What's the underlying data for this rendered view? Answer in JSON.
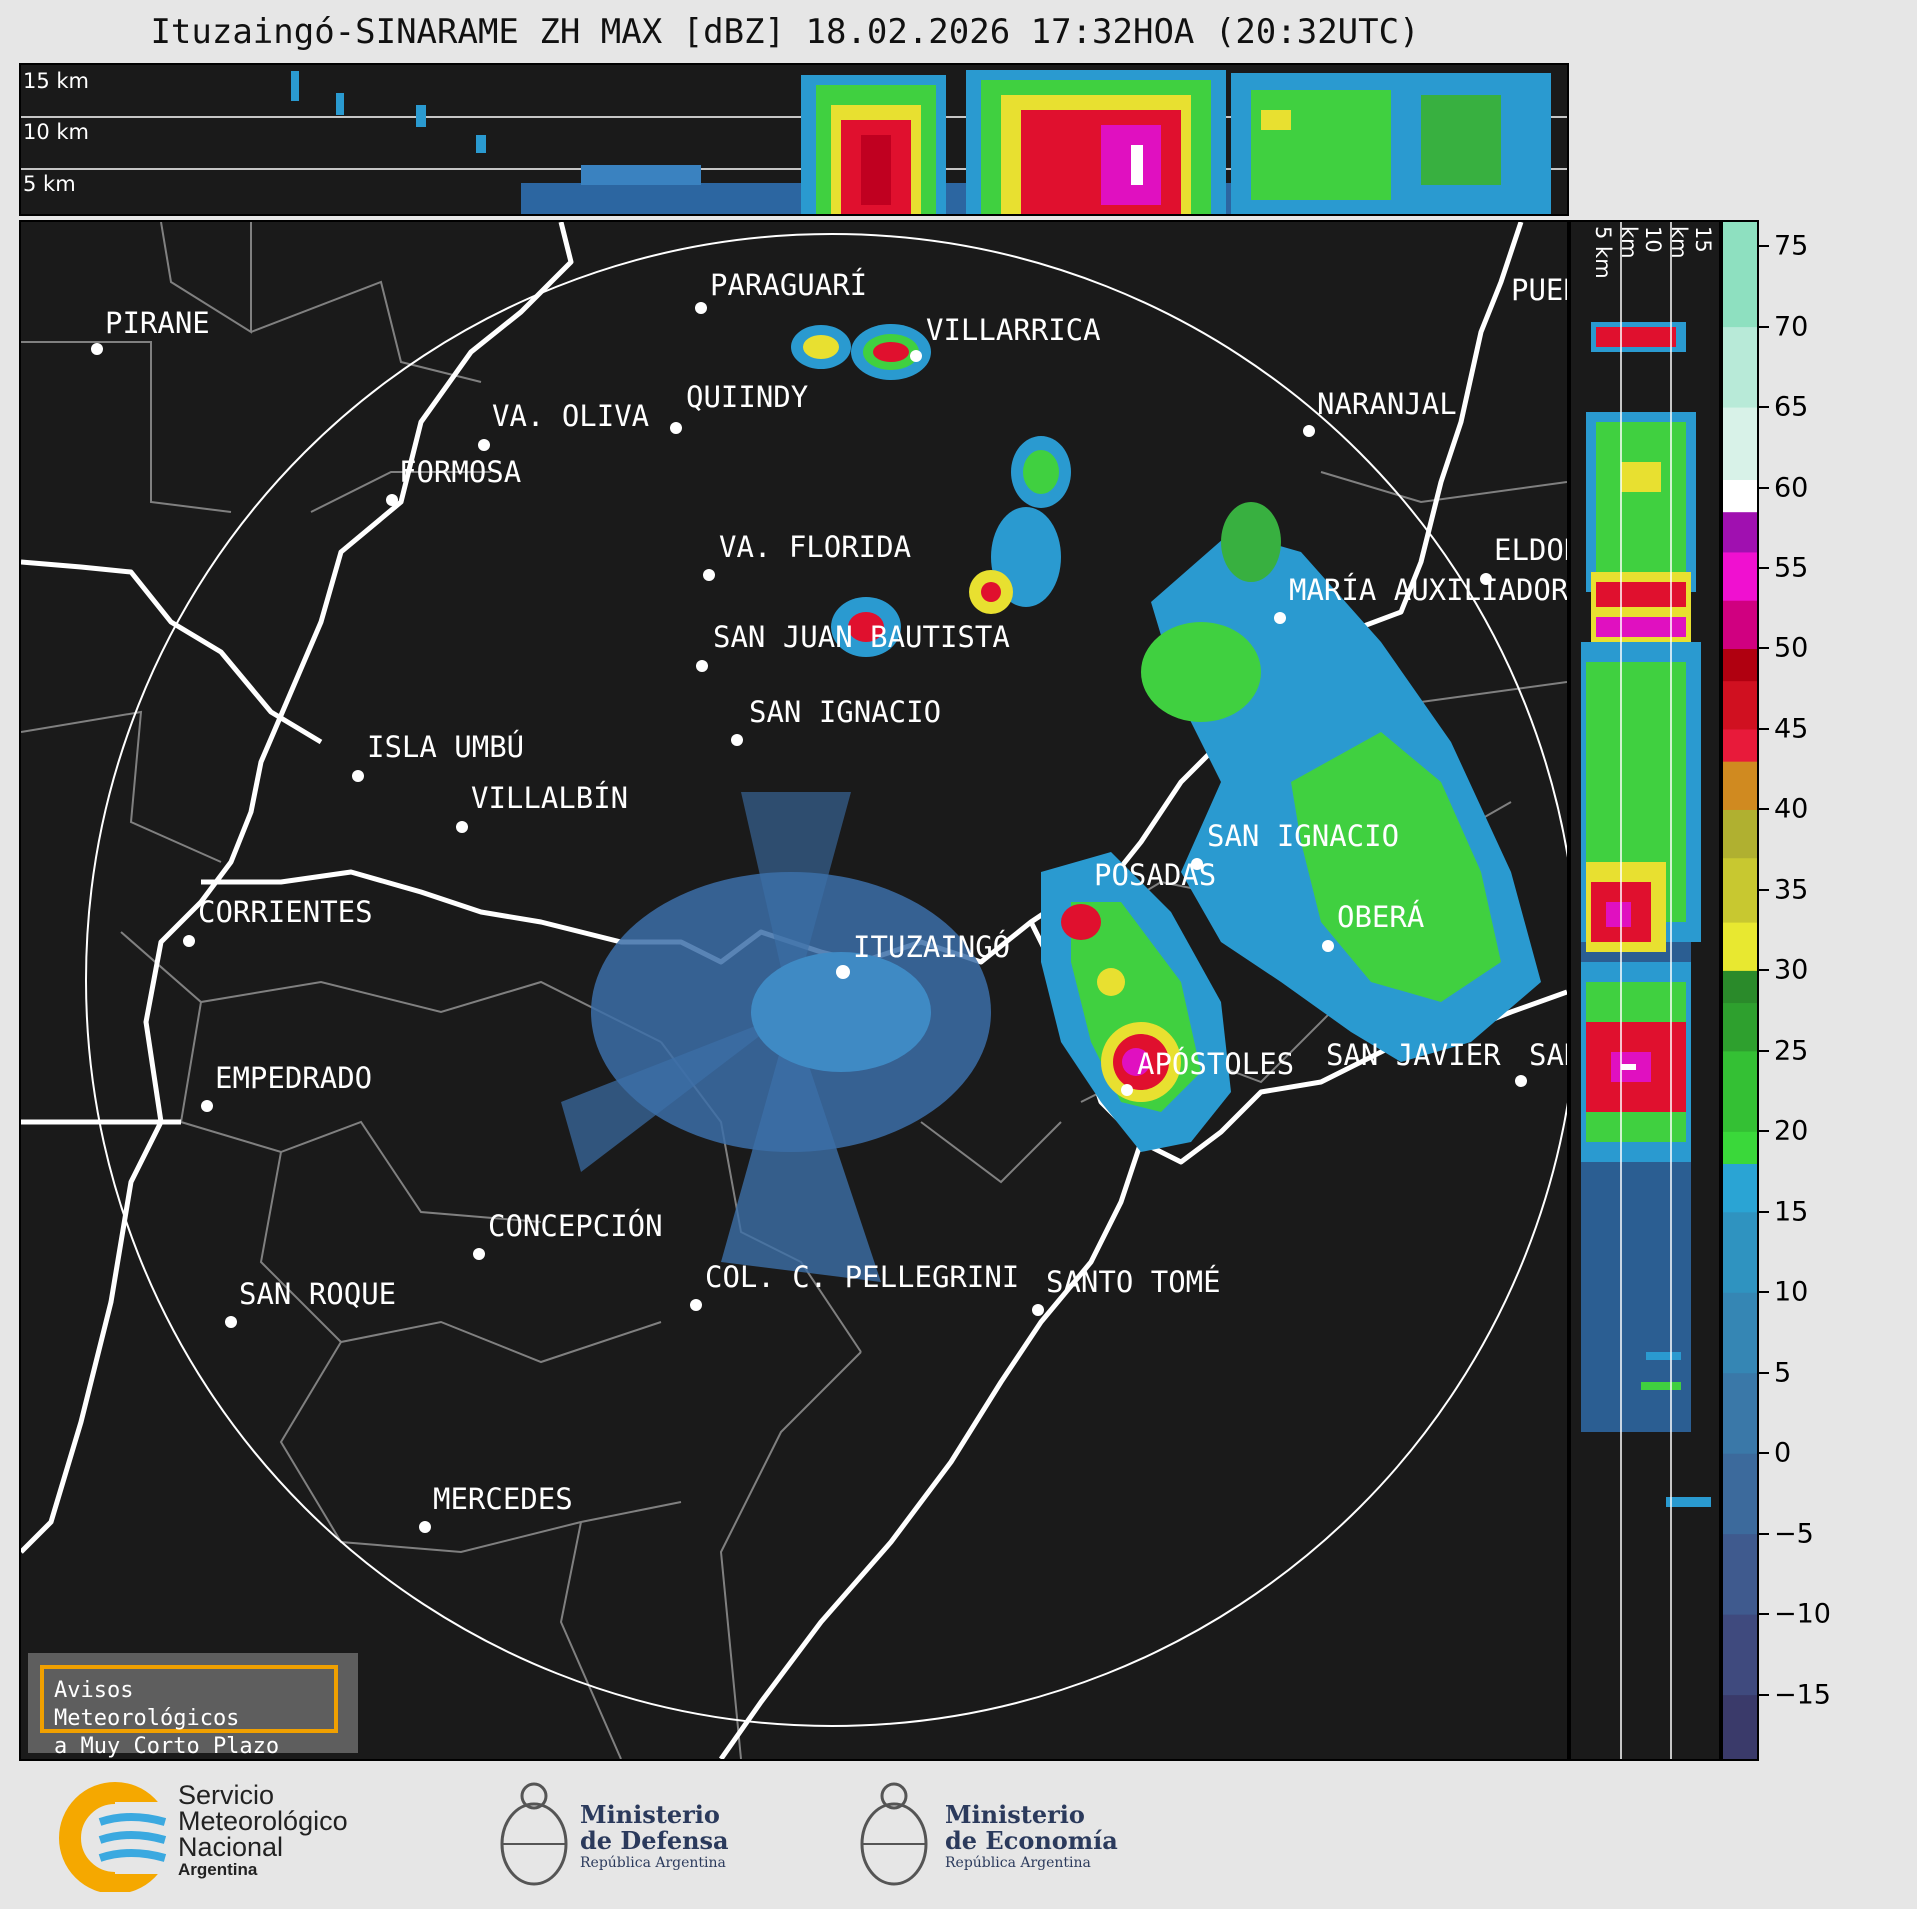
{
  "title": "Ituzaingó-SINARAME ZH MAX [dBZ] 18.02.2026 17:32HOA (20:32UTC)",
  "top_panel": {
    "height_labels": [
      "15 km",
      "10 km",
      "5 km"
    ]
  },
  "side_panel": {
    "height_labels": [
      "5 km",
      "10 km",
      "15 km"
    ]
  },
  "colorbar": {
    "ticks": [
      "75",
      "70",
      "65",
      "60",
      "55",
      "50",
      "45",
      "40",
      "35",
      "30",
      "25",
      "20",
      "15",
      "10",
      "5",
      "0",
      "−5",
      "−10",
      "−15"
    ],
    "min": -19,
    "max": 76.5
  },
  "cities": [
    {
      "name": "PARAGUARÍ"
    },
    {
      "name": "VILLARRICA"
    },
    {
      "name": "PIRANE"
    },
    {
      "name": "QUIINDY"
    },
    {
      "name": "VA. OLIVA"
    },
    {
      "name": "NARANJAL"
    },
    {
      "name": "FORMOSA"
    },
    {
      "name": "PUER"
    },
    {
      "name": "VA. FLORIDA"
    },
    {
      "name": "ELDOR"
    },
    {
      "name": "MARÍA AUXILIADOR"
    },
    {
      "name": "SAN JUAN BAUTISTA"
    },
    {
      "name": "SAN IGNACIO"
    },
    {
      "name": "ISLA UMBÚ"
    },
    {
      "name": "VILLALBÍN"
    },
    {
      "name": "SAN IGNACIO"
    },
    {
      "name": "POSADAS"
    },
    {
      "name": "CORRIENTES"
    },
    {
      "name": "ITUZAINGÓ"
    },
    {
      "name": "OBERÁ"
    },
    {
      "name": "APÓSTOLES"
    },
    {
      "name": "SAN JAVIER"
    },
    {
      "name": "SAN"
    },
    {
      "name": "EMPEDRADO"
    },
    {
      "name": "CONCEPCIÓN"
    },
    {
      "name": "COL. C. PELLEGRINI"
    },
    {
      "name": "SANTO TOMÉ"
    },
    {
      "name": "SAN ROQUE"
    },
    {
      "name": "MERCEDES"
    }
  ],
  "warning": {
    "line1": "Avisos Meteorológicos",
    "line2": "a Muy Corto Plazo"
  },
  "logos": {
    "smn": [
      "Servicio",
      "Meteorológico",
      "Nacional",
      "Argentina"
    ],
    "defensa": [
      "Ministerio",
      "de Defensa",
      "República Argentina"
    ],
    "economia": [
      "Ministerio",
      "de Economía",
      "República Argentina"
    ]
  },
  "colors": {
    "panel_bg": "#1a1a1a",
    "page_bg": "#e6e6e6",
    "warning_border": "#f0a000"
  }
}
